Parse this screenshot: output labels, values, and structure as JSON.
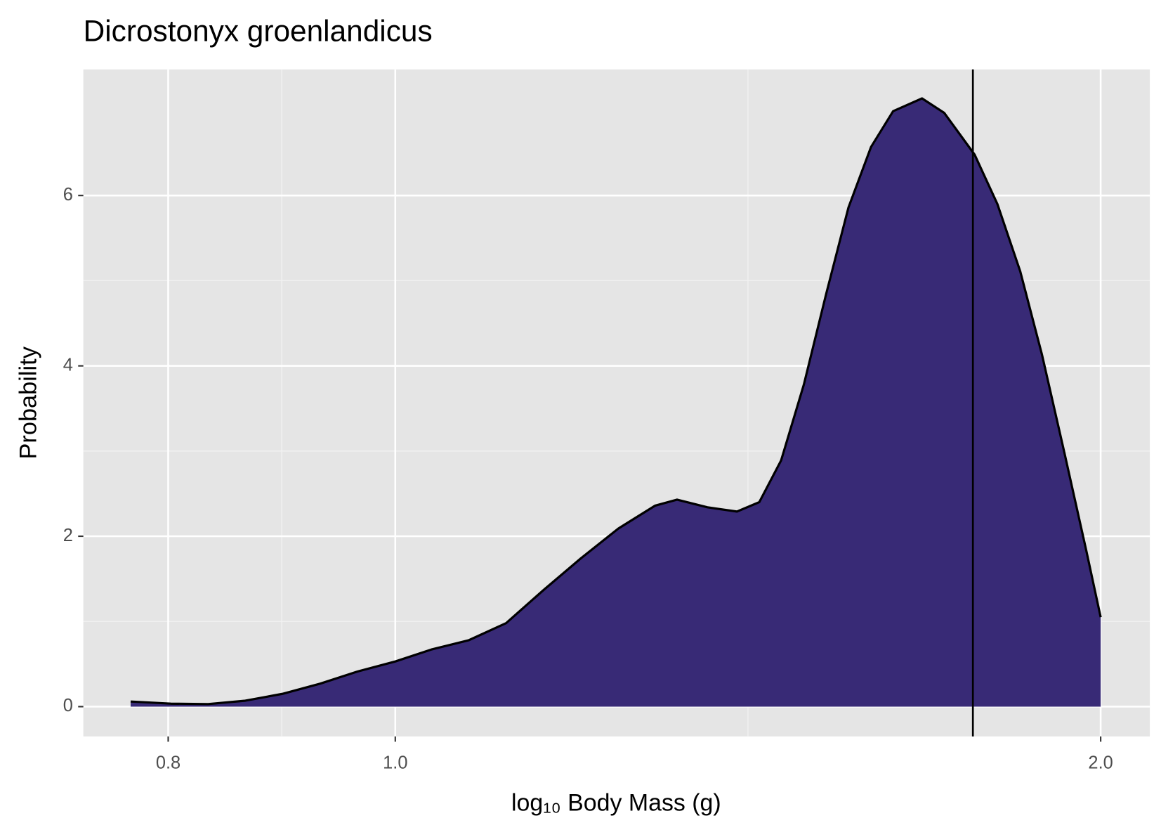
{
  "chart_data": {
    "type": "density",
    "title": "Dicrostonyx groenlandicus",
    "x_label": "log₁₀ Body Mass (g)",
    "y_label": "Probability",
    "x": [
      0.771,
      0.802,
      0.832,
      0.863,
      0.895,
      0.929,
      0.963,
      1.0,
      1.036,
      1.075,
      1.115,
      1.157,
      1.2,
      1.245,
      1.291,
      1.319,
      1.359,
      1.399,
      1.43,
      1.461,
      1.494,
      1.527,
      1.561,
      1.596,
      1.631,
      1.678,
      1.715,
      1.767,
      1.807,
      1.848,
      1.888,
      1.93,
      1.972,
      2.0
    ],
    "values": [
      0.06,
      0.035,
      0.03,
      0.07,
      0.15,
      0.27,
      0.41,
      0.53,
      0.67,
      0.78,
      0.98,
      1.37,
      1.74,
      2.09,
      2.36,
      2.43,
      2.34,
      2.29,
      2.4,
      2.89,
      3.78,
      4.84,
      5.86,
      6.57,
      6.99,
      7.14,
      6.97,
      6.48,
      5.9,
      5.11,
      4.13,
      2.98,
      1.83,
      1.05
    ],
    "color": "#382a76",
    "reference_line": 1.764,
    "xlog": true,
    "xlim": [
      0.736,
      2.099
    ],
    "xticks": [
      0.8,
      {
        "value": 1.0,
        "label": "1.0"
      },
      {
        "value": 2.0,
        "label": "2.0"
      }
    ],
    "ylim": [
      -0.35,
      7.48
    ],
    "yticks": [
      0,
      2,
      4,
      6
    ],
    "grid": true
  }
}
